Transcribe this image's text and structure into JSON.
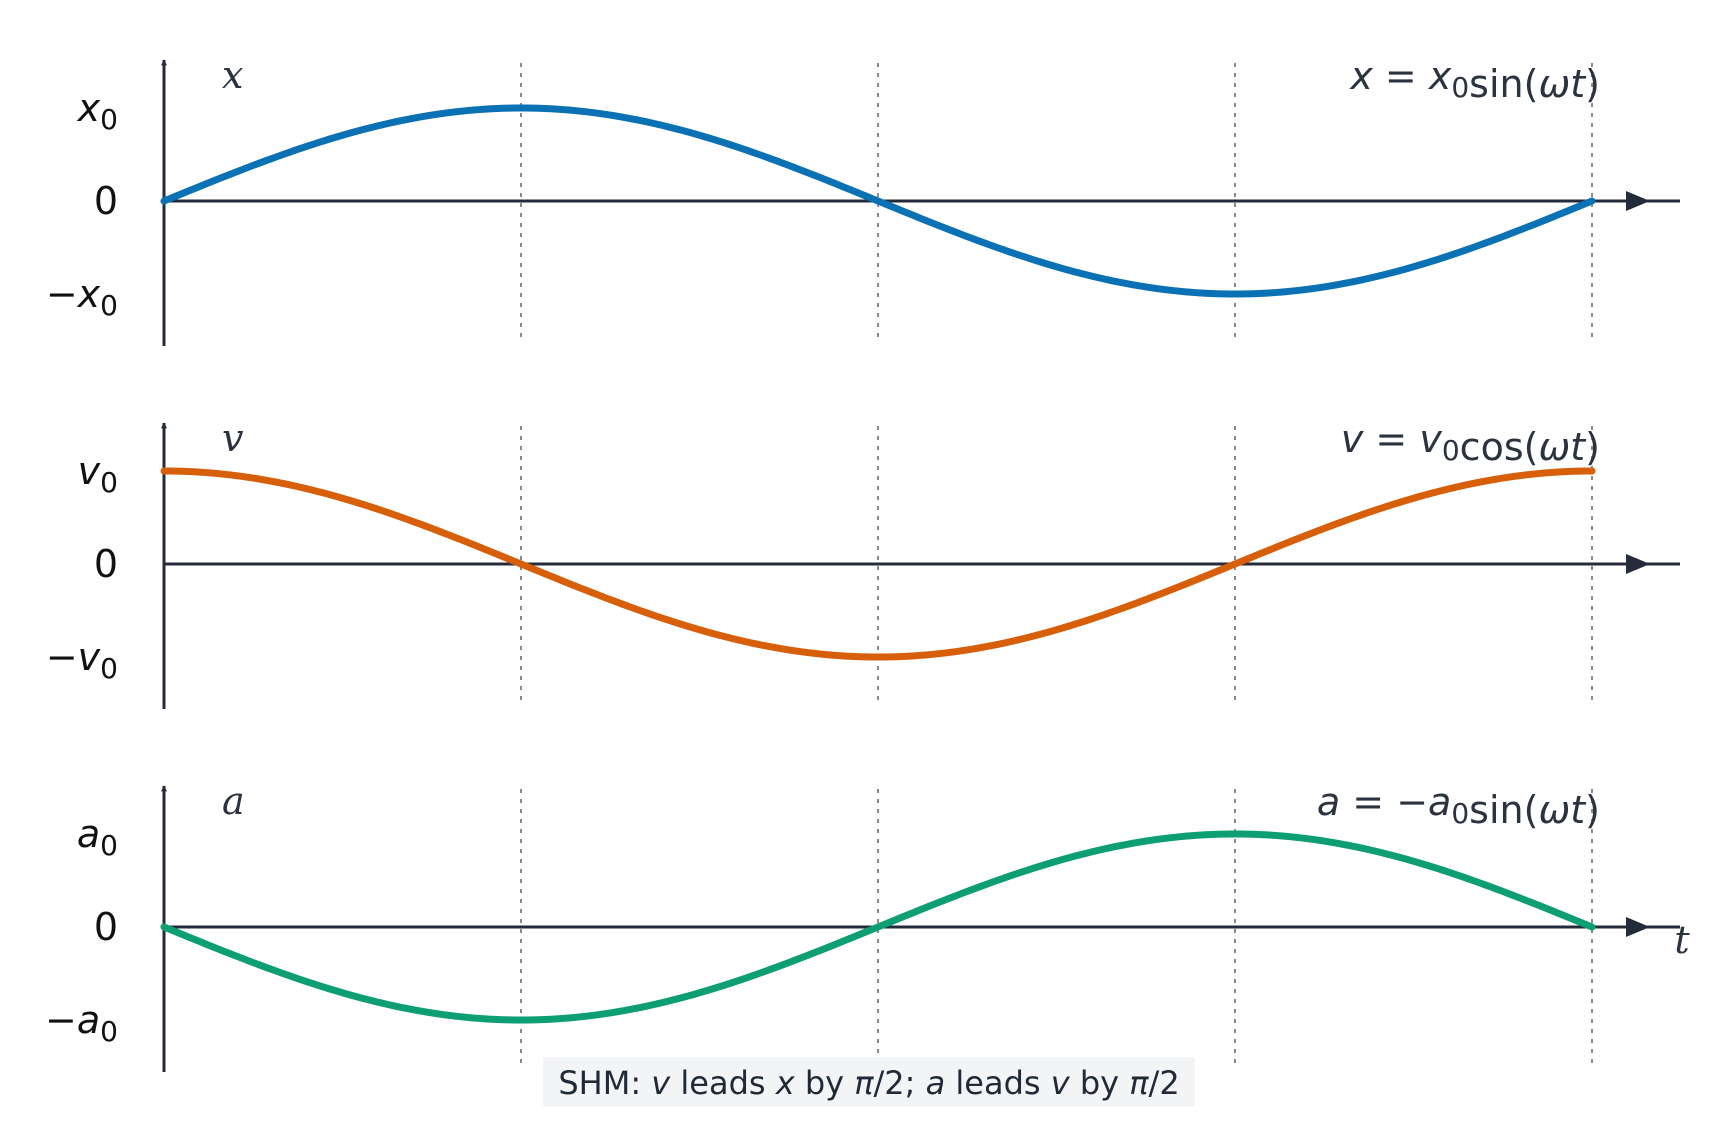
{
  "chart_data": {
    "type": "line",
    "colors": {
      "x": "#0a71b4",
      "v": "#d85f0a",
      "a": "#0d9e73",
      "axis": "#252b3a",
      "grid": "#8a8a8a",
      "caption_bg": "#f3f4f6"
    },
    "x_axis_label": "t",
    "x_range_radians": [
      0,
      6.283185307
    ],
    "guide_lines_at_radians": [
      1.570796327,
      3.141592654,
      4.71238898,
      6.283185307
    ],
    "grid": "vertical dotted guides",
    "caption": {
      "parts": [
        {
          "t": "SHM: ",
          "italic": false
        },
        {
          "t": "v",
          "italic": true
        },
        {
          "t": " leads ",
          "italic": false
        },
        {
          "t": "x",
          "italic": true
        },
        {
          "t": " by ",
          "italic": false
        },
        {
          "t": "π",
          "italic": true
        },
        {
          "t": "/2; ",
          "italic": false
        },
        {
          "t": "a",
          "italic": true
        },
        {
          "t": " leads ",
          "italic": false
        },
        {
          "t": "v",
          "italic": true
        },
        {
          "t": " by ",
          "italic": false
        },
        {
          "t": "π",
          "italic": true
        },
        {
          "t": "/2",
          "italic": false
        }
      ]
    },
    "panels": [
      {
        "name": "x",
        "y_axis_label": "x",
        "function": "sin",
        "amplitude_sign": 1,
        "equation": [
          {
            "t": "x",
            "italic": true
          },
          {
            "t": " = ",
            "italic": false
          },
          {
            "t": "x",
            "italic": true
          },
          {
            "t": "0",
            "sub": true
          },
          {
            "t": "sin(",
            "italic": false
          },
          {
            "t": "ωt",
            "italic": true
          },
          {
            "t": ")",
            "italic": false
          }
        ],
        "ticks": [
          {
            "value": 1,
            "base": "x",
            "sub": "0",
            "prefix": ""
          },
          {
            "value": 0,
            "base": "0",
            "sub": "",
            "prefix": ""
          },
          {
            "value": -1,
            "base": "x",
            "sub": "0",
            "prefix": "−"
          }
        ]
      },
      {
        "name": "v",
        "y_axis_label": "v",
        "function": "cos",
        "amplitude_sign": 1,
        "equation": [
          {
            "t": "v",
            "italic": true
          },
          {
            "t": " = ",
            "italic": false
          },
          {
            "t": "v",
            "italic": true
          },
          {
            "t": "0",
            "sub": true
          },
          {
            "t": "cos(",
            "italic": false
          },
          {
            "t": "ωt",
            "italic": true
          },
          {
            "t": ")",
            "italic": false
          }
        ],
        "ticks": [
          {
            "value": 1,
            "base": "v",
            "sub": "0",
            "prefix": ""
          },
          {
            "value": 0,
            "base": "0",
            "sub": "",
            "prefix": ""
          },
          {
            "value": -1,
            "base": "v",
            "sub": "0",
            "prefix": "−"
          }
        ]
      },
      {
        "name": "a",
        "y_axis_label": "a",
        "function": "sin",
        "amplitude_sign": -1,
        "equation": [
          {
            "t": "a",
            "italic": true
          },
          {
            "t": " = −",
            "italic": false
          },
          {
            "t": "a",
            "italic": true
          },
          {
            "t": "0",
            "sub": true
          },
          {
            "t": "sin(",
            "italic": false
          },
          {
            "t": "ωt",
            "italic": true
          },
          {
            "t": ")",
            "italic": false
          }
        ],
        "ticks": [
          {
            "value": 1,
            "base": "a",
            "sub": "0",
            "prefix": ""
          },
          {
            "value": 0,
            "base": "0",
            "sub": "",
            "prefix": ""
          },
          {
            "value": -1,
            "base": "a",
            "sub": "0",
            "prefix": "−"
          }
        ]
      }
    ]
  }
}
